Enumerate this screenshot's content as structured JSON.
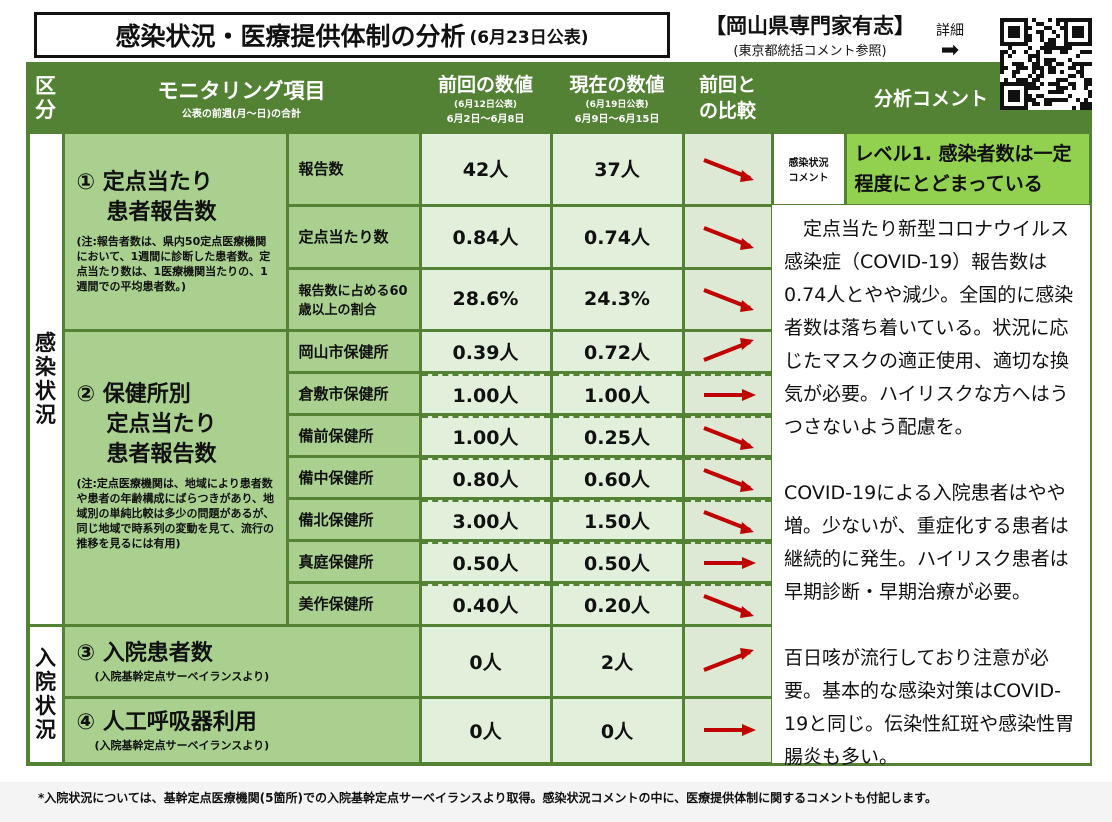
{
  "title": {
    "main": "感染状況・医療提供体制の分析",
    "date": "(6月23日公表)"
  },
  "expert": {
    "name": "【岡山県専門家有志】",
    "note": "(東京都統括コメント参照)"
  },
  "detail": {
    "label": "詳細",
    "arrow": "➡"
  },
  "header": {
    "kubun": "区分",
    "item": "モニタリング項目",
    "item_sub": "公表の前週(月～日)の合計",
    "prev": "前回の数値",
    "prev_sub1": "(6月12日公表)",
    "prev_sub2": "6月2日～6月8日",
    "cur": "現在の数値",
    "cur_sub1": "(6月19日公表)",
    "cur_sub2": "6月9日～6月15日",
    "cmp": "前回との比較",
    "comment": "分析コメント"
  },
  "categories": {
    "infection": "感染状況",
    "hospital": "入院状況"
  },
  "groups": [
    {
      "title1": "① 定点当たり",
      "title2": "患者報告数",
      "note": "(注:報告者数は、県内50定点医療機関において、1週間に診断した患者数。定点当たり数は、1医療機関当たりの、1週間での平均患者数。)"
    },
    {
      "title1": "② 保健所別",
      "title2": "定点当たり",
      "title3": "患者報告数",
      "note": "(注:定点医療機関は、地域により患者数や患者の年齢構成にばらつきがあり、地域別の単純比較は多少の問題があるが、同じ地域で時系列の変動を見て、流行の推移を見るには有用)"
    },
    {
      "title1": "③ 入院患者数",
      "note": "(入院基幹定点サーベイランスより)"
    },
    {
      "title1": "④ 人工呼吸器利用",
      "note": "(入院基幹定点サーベイランスより)"
    }
  ],
  "rows": [
    {
      "label": "報告数",
      "prev": "42人",
      "cur": "37人",
      "trend": "down"
    },
    {
      "label": "定点当たり数",
      "prev": "0.84人",
      "cur": "0.74人",
      "trend": "down"
    },
    {
      "label": "報告数に占める60歳以上の割合",
      "prev": "28.6%",
      "cur": "24.3%",
      "trend": "down"
    },
    {
      "label": "岡山市保健所",
      "prev": "0.39人",
      "cur": "0.72人",
      "trend": "up"
    },
    {
      "label": "倉敷市保健所",
      "prev": "1.00人",
      "cur": "1.00人",
      "trend": "flat"
    },
    {
      "label": "備前保健所",
      "prev": "1.00人",
      "cur": "0.25人",
      "trend": "down"
    },
    {
      "label": "備中保健所",
      "prev": "0.80人",
      "cur": "0.60人",
      "trend": "down"
    },
    {
      "label": "備北保健所",
      "prev": "3.00人",
      "cur": "1.50人",
      "trend": "down"
    },
    {
      "label": "真庭保健所",
      "prev": "0.50人",
      "cur": "0.50人",
      "trend": "flat"
    },
    {
      "label": "美作保健所",
      "prev": "0.40人",
      "cur": "0.20人",
      "trend": "down"
    },
    {
      "label": "",
      "prev": "0人",
      "cur": "2人",
      "trend": "up"
    },
    {
      "label": "",
      "prev": "0人",
      "cur": "0人",
      "trend": "flat"
    }
  ],
  "comment": {
    "tag": "感染状況コメント",
    "level": "レベル1. 感染者数は一定程度にとどまっている",
    "paragraphs": [
      "　定点当たり新型コロナウイルス感染症（COVID-19）報告数は0.74人とやや減少。全国的に感染者数は落ち着いている。状況に応じたマスクの適正使用、適切な換気が必要。ハイリスクな方へはうつさないよう配慮を。",
      "COVID-19による入院患者はやや増。少ないが、重症化する患者は継続的に発生。ハイリスク患者は早期診断・早期治療が必要。",
      "百日咳が流行しており注意が必要。基本的な感染対策はCOVID-19と同じ。伝染性紅斑や感染性胃腸炎も多い。"
    ]
  },
  "footer": "*入院状況については、基幹定点医療機関(5箇所)での入院基幹定点サーベイランスより取得。感染状況コメントの中に、医療提供体制に関するコメントも付記します。",
  "colors": {
    "header": "#548235",
    "item": "#a9d08e",
    "value": "#e2efda",
    "level": "#92d050",
    "arrow": "#c00000"
  }
}
